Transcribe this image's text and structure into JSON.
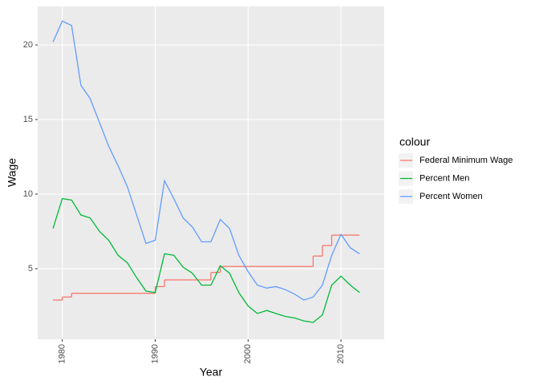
{
  "chart_data": {
    "type": "line",
    "x_label": "Year",
    "y_label": "Wage",
    "legend_title": "colour",
    "legend": "right",
    "grid": true,
    "x": [
      1979,
      1980,
      1981,
      1982,
      1983,
      1984,
      1985,
      1986,
      1987,
      1988,
      1989,
      1990,
      1991,
      1992,
      1993,
      1994,
      1995,
      1996,
      1997,
      1998,
      1999,
      2000,
      2001,
      2002,
      2003,
      2004,
      2005,
      2006,
      2007,
      2008,
      2009,
      2010,
      2011,
      2012
    ],
    "xlim": [
      1977.35,
      2014.65
    ],
    "xticks": [
      1980,
      1990,
      2000,
      2010
    ],
    "ylim": [
      0.27,
      22.58
    ],
    "yticks": [
      5,
      10,
      15,
      20
    ],
    "series": [
      {
        "name": "Federal Minimum Wage",
        "color": "#F8766D",
        "step": true,
        "values": [
          2.9,
          3.1,
          3.35,
          3.35,
          3.35,
          3.35,
          3.35,
          3.35,
          3.35,
          3.35,
          3.35,
          3.8,
          4.25,
          4.25,
          4.25,
          4.25,
          4.25,
          4.75,
          5.15,
          5.15,
          5.15,
          5.15,
          5.15,
          5.15,
          5.15,
          5.15,
          5.15,
          5.15,
          5.85,
          6.55,
          7.25,
          7.25,
          7.25,
          7.25
        ]
      },
      {
        "name": "Percent Men",
        "color": "#00BA38",
        "values": [
          7.7,
          9.7,
          9.6,
          8.6,
          8.4,
          7.5,
          6.9,
          5.9,
          5.4,
          4.4,
          3.5,
          3.4,
          6.0,
          5.9,
          5.1,
          4.7,
          3.9,
          3.9,
          5.2,
          4.7,
          3.4,
          2.5,
          2.0,
          2.2,
          2.0,
          1.8,
          1.7,
          1.5,
          1.4,
          1.9,
          3.9,
          4.5,
          3.9,
          3.4
        ]
      },
      {
        "name": "Percent Women",
        "color": "#619CFF",
        "values": [
          20.2,
          21.6,
          21.3,
          17.3,
          16.4,
          14.8,
          13.2,
          11.9,
          10.5,
          8.6,
          6.7,
          6.9,
          10.9,
          9.7,
          8.4,
          7.8,
          6.8,
          6.8,
          8.3,
          7.7,
          5.9,
          4.8,
          3.9,
          3.7,
          3.8,
          3.6,
          3.3,
          2.9,
          3.1,
          3.9,
          5.9,
          7.3,
          6.4,
          6.0
        ]
      }
    ]
  }
}
